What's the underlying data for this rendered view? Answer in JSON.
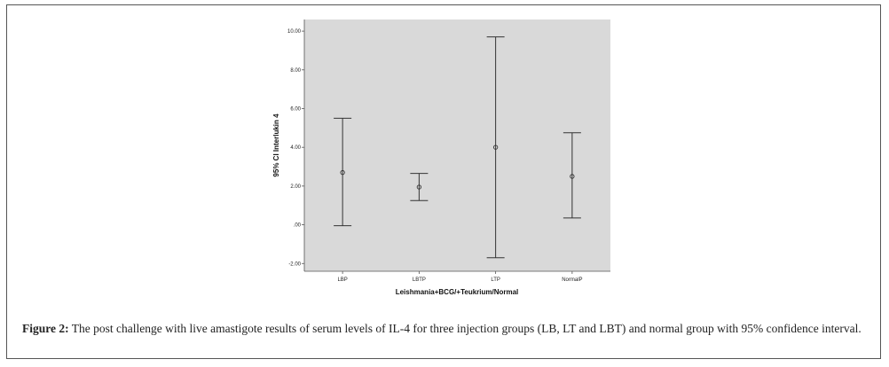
{
  "figure": {
    "caption_label": "Figure 2:",
    "caption_text": " The post challenge with live amastigote results of serum levels of IL-4 for three injection groups (LB, LT and LBT) and normal group with 95% confidence interval."
  },
  "colors": {
    "plot_background": "#d9d9d9",
    "error_bar": "#333333"
  },
  "chart_data": {
    "type": "errorbar",
    "xlabel": "Leishmania+BCG/+Teukrium/Normal",
    "ylabel": "95% CI Interlukin 4",
    "ylim": [
      -2.4,
      10.6
    ],
    "yticks": [
      -2,
      0,
      2,
      4,
      6,
      8,
      10
    ],
    "ytick_labels": [
      "-2.00",
      ".00",
      "2.00",
      "4.00",
      "6.00",
      "8.00",
      "10.00"
    ],
    "categories": [
      "LBP",
      "LBTP",
      "LTP",
      "NormalP"
    ],
    "mean": [
      2.7,
      1.95,
      4.0,
      2.5
    ],
    "lower": [
      -0.05,
      1.25,
      -1.7,
      0.35
    ],
    "upper": [
      5.5,
      2.65,
      9.7,
      4.75
    ]
  }
}
